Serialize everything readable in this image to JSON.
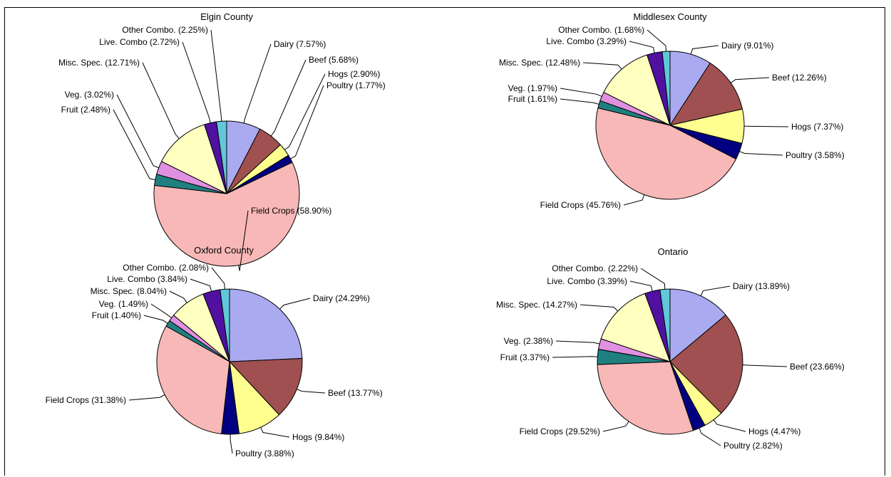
{
  "chart_data": [
    {
      "type": "pie",
      "title": "Elgin County",
      "slices": [
        {
          "name": "Dairy",
          "value": 7.57,
          "label": "Dairy (7.57%)",
          "color": "#aaaaf0"
        },
        {
          "name": "Beef",
          "value": 5.68,
          "label": "Beef (5.68%)",
          "color": "#a05050"
        },
        {
          "name": "Hogs",
          "value": 2.9,
          "label": "Hogs (2.90%)",
          "color": "#ffff90"
        },
        {
          "name": "Poultry",
          "value": 1.77,
          "label": "Poultry (1.77%)",
          "color": "#000080"
        },
        {
          "name": "Field Crops",
          "value": 58.9,
          "label": "Field Crops (58.90%)",
          "color": "#f8b8b8"
        },
        {
          "name": "Fruit",
          "value": 2.48,
          "label": "Fruit (2.48%)",
          "color": "#208080"
        },
        {
          "name": "Veg.",
          "value": 3.02,
          "label": "Veg. (3.02%)",
          "color": "#e090e0"
        },
        {
          "name": "Misc. Spec.",
          "value": 12.71,
          "label": "Misc. Spec. (12.71%)",
          "color": "#ffffc0"
        },
        {
          "name": "Live. Combo",
          "value": 2.72,
          "label": "Live. Combo (2.72%)",
          "color": "#5010a0"
        },
        {
          "name": "Other Combo.",
          "value": 2.25,
          "label": "Other Combo. (2.25%)",
          "color": "#60c8d8"
        }
      ]
    },
    {
      "type": "pie",
      "title": "Middlesex County",
      "slices": [
        {
          "name": "Dairy",
          "value": 9.01,
          "label": "Dairy (9.01%)",
          "color": "#aaaaf0"
        },
        {
          "name": "Beef",
          "value": 12.26,
          "label": "Beef (12.26%)",
          "color": "#a05050"
        },
        {
          "name": "Hogs",
          "value": 7.37,
          "label": "Hogs (7.37%)",
          "color": "#ffff90"
        },
        {
          "name": "Poultry",
          "value": 3.58,
          "label": "Poultry (3.58%)",
          "color": "#000080"
        },
        {
          "name": "Field Crops",
          "value": 45.76,
          "label": "Field Crops (45.76%)",
          "color": "#f8b8b8"
        },
        {
          "name": "Fruit",
          "value": 1.61,
          "label": "Fruit (1.61%)",
          "color": "#208080"
        },
        {
          "name": "Veg.",
          "value": 1.97,
          "label": "Veg. (1.97%)",
          "color": "#e090e0"
        },
        {
          "name": "Misc. Spec.",
          "value": 12.48,
          "label": "Misc. Spec. (12.48%)",
          "color": "#ffffc0"
        },
        {
          "name": "Live. Combo",
          "value": 3.29,
          "label": "Live. Combo (3.29%)",
          "color": "#5010a0"
        },
        {
          "name": "Other Combo.",
          "value": 1.68,
          "label": "Other Combo. (1.68%)",
          "color": "#60c8d8"
        }
      ]
    },
    {
      "type": "pie",
      "title": "Oxford County",
      "slices": [
        {
          "name": "Dairy",
          "value": 24.29,
          "label": "Dairy (24.29%)",
          "color": "#aaaaf0"
        },
        {
          "name": "Beef",
          "value": 13.77,
          "label": "Beef (13.77%)",
          "color": "#a05050"
        },
        {
          "name": "Hogs",
          "value": 9.84,
          "label": "Hogs (9.84%)",
          "color": "#ffff90"
        },
        {
          "name": "Poultry",
          "value": 3.88,
          "label": "Poultry (3.88%)",
          "color": "#000080"
        },
        {
          "name": "Field Crops",
          "value": 31.38,
          "label": "Field Crops (31.38%)",
          "color": "#f8b8b8"
        },
        {
          "name": "Fruit",
          "value": 1.4,
          "label": "Fruit (1.40%)",
          "color": "#208080"
        },
        {
          "name": "Veg.",
          "value": 1.49,
          "label": "Veg. (1.49%)",
          "color": "#e090e0"
        },
        {
          "name": "Misc. Spec.",
          "value": 8.04,
          "label": "Misc. Spec. (8.04%)",
          "color": "#ffffc0"
        },
        {
          "name": "Live. Combo",
          "value": 3.84,
          "label": "Live. Combo (3.84%)",
          "color": "#5010a0"
        },
        {
          "name": "Other Combo.",
          "value": 2.08,
          "label": "Other Combo. (2.08%)",
          "color": "#60c8d8"
        }
      ]
    },
    {
      "type": "pie",
      "title": "Ontario",
      "slices": [
        {
          "name": "Dairy",
          "value": 13.89,
          "label": "Dairy (13.89%)",
          "color": "#aaaaf0"
        },
        {
          "name": "Beef",
          "value": 23.66,
          "label": "Beef (23.66%)",
          "color": "#a05050"
        },
        {
          "name": "Hogs",
          "value": 4.47,
          "label": "Hogs (4.47%)",
          "color": "#ffff90"
        },
        {
          "name": "Poultry",
          "value": 2.82,
          "label": "Poultry (2.82%)",
          "color": "#000080"
        },
        {
          "name": "Field Crops",
          "value": 29.52,
          "label": "Field Crops (29.52%)",
          "color": "#f8b8b8"
        },
        {
          "name": "Fruit",
          "value": 3.37,
          "label": "Fruit (3.37%)",
          "color": "#208080"
        },
        {
          "name": "Veg.",
          "value": 2.38,
          "label": "Veg. (2.38%)",
          "color": "#e090e0"
        },
        {
          "name": "Misc. Spec.",
          "value": 14.27,
          "label": "Misc. Spec. (14.27%)",
          "color": "#ffffc0"
        },
        {
          "name": "Live. Combo",
          "value": 3.39,
          "label": "Live. Combo (3.39%)",
          "color": "#5010a0"
        },
        {
          "name": "Other Combo.",
          "value": 2.22,
          "label": "Other Combo. (2.22%)",
          "color": "#60c8d8"
        }
      ]
    }
  ]
}
